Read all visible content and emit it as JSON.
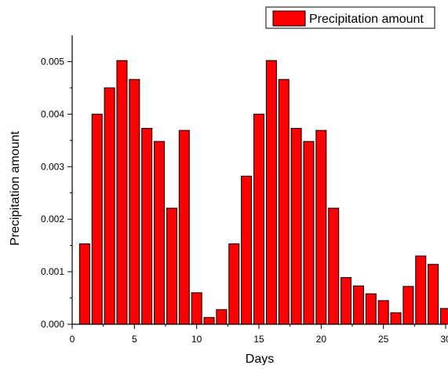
{
  "chart_data": {
    "type": "bar",
    "xlabel": "Days",
    "ylabel": "Precipitation amount",
    "x": [
      1,
      2,
      3,
      4,
      5,
      6,
      7,
      8,
      9,
      10,
      11,
      12,
      13,
      14,
      15,
      16,
      17,
      18,
      19,
      20,
      21,
      22,
      23,
      24,
      25,
      26,
      27,
      28,
      29,
      30
    ],
    "series": [
      {
        "name": "Precipitation amount",
        "values": [
          0.00153,
          0.004,
          0.0045,
          0.00502,
          0.00466,
          0.00373,
          0.00348,
          0.00221,
          0.00369,
          0.0006,
          0.00013,
          0.00028,
          0.00153,
          0.00282,
          0.004,
          0.00502,
          0.00466,
          0.00373,
          0.00348,
          0.00369,
          0.00221,
          0.00089,
          0.00073,
          0.00058,
          0.00045,
          0.00022,
          0.00072,
          0.0013,
          0.00114,
          0.0003
        ],
        "color": "#ff0000"
      }
    ],
    "xlim": [
      0,
      30
    ],
    "ylim": [
      0,
      0.0055
    ],
    "xticks": [
      0,
      5,
      10,
      15,
      20,
      25,
      30
    ],
    "xtick_labels": [
      "0",
      "5",
      "10",
      "15",
      "20",
      "25",
      "30"
    ],
    "yticks": [
      0,
      0.001,
      0.002,
      0.003,
      0.004,
      0.005
    ],
    "ytick_labels": [
      "0.000",
      "0.001",
      "0.002",
      "0.003",
      "0.004",
      "0.005"
    ],
    "legend": {
      "position": "top-right",
      "entries": [
        "Precipitation amount"
      ]
    },
    "grid": false
  }
}
